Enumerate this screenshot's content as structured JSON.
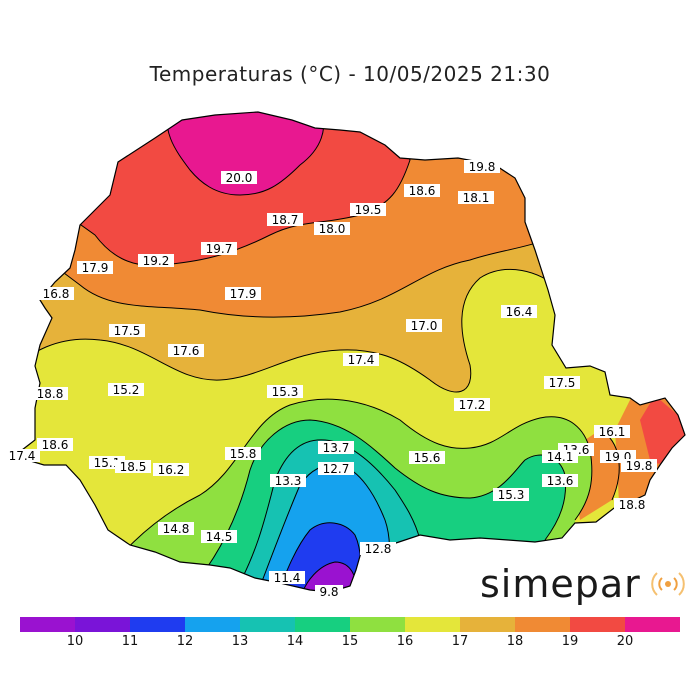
{
  "title": "Temperaturas (°C) - 10/05/2025 21:30",
  "brand": {
    "name": "simepar",
    "icon": "signal-waves-icon",
    "color": "#f0a040"
  },
  "colorbar": {
    "ticks": [
      "10",
      "11",
      "12",
      "13",
      "14",
      "15",
      "16",
      "17",
      "18",
      "19",
      "20"
    ],
    "colors": [
      "#9a12d0",
      "#7a14d8",
      "#1f3cf0",
      "#15a2ee",
      "#16c2b2",
      "#17cf80",
      "#8fe040",
      "#e4e63a",
      "#e6b23a",
      "#f08a34",
      "#f24a42",
      "#e81890"
    ]
  },
  "labels": [
    {
      "id": "v1",
      "text": "20.0"
    },
    {
      "id": "v2",
      "text": "19.8"
    },
    {
      "id": "v3",
      "text": "18.6"
    },
    {
      "id": "v4",
      "text": "18.1"
    },
    {
      "id": "v5",
      "text": "19.5"
    },
    {
      "id": "v6",
      "text": "18.7"
    },
    {
      "id": "v7",
      "text": "18.0"
    },
    {
      "id": "v8",
      "text": "19.7"
    },
    {
      "id": "v9",
      "text": "19.2"
    },
    {
      "id": "v10",
      "text": "17.9"
    },
    {
      "id": "v11",
      "text": "17.9"
    },
    {
      "id": "v12",
      "text": "16.8"
    },
    {
      "id": "v13",
      "text": "17.5"
    },
    {
      "id": "v14",
      "text": "17.6"
    },
    {
      "id": "v15",
      "text": "17.0"
    },
    {
      "id": "v16",
      "text": "16.4"
    },
    {
      "id": "v17",
      "text": "17.4"
    },
    {
      "id": "v18",
      "text": "15.2"
    },
    {
      "id": "v19",
      "text": "15.3"
    },
    {
      "id": "v20",
      "text": "17.5"
    },
    {
      "id": "v21",
      "text": "17.2"
    },
    {
      "id": "v22",
      "text": "18.8"
    },
    {
      "id": "v23",
      "text": "16.1"
    },
    {
      "id": "v24",
      "text": "13.7"
    },
    {
      "id": "v25",
      "text": "13.6"
    },
    {
      "id": "v26",
      "text": "14.1"
    },
    {
      "id": "v27",
      "text": "19.0"
    },
    {
      "id": "v28",
      "text": "18.6"
    },
    {
      "id": "v29",
      "text": "15.8"
    },
    {
      "id": "v30",
      "text": "15.6"
    },
    {
      "id": "v31",
      "text": "12.7"
    },
    {
      "id": "v32",
      "text": "19.8"
    },
    {
      "id": "v33",
      "text": "17.4"
    },
    {
      "id": "v34",
      "text": "15.1"
    },
    {
      "id": "v35",
      "text": "18.5"
    },
    {
      "id": "v36",
      "text": "16.2"
    },
    {
      "id": "v37",
      "text": "13.3"
    },
    {
      "id": "v38",
      "text": "13.6"
    },
    {
      "id": "v39",
      "text": "15.3"
    },
    {
      "id": "v40",
      "text": "18.8"
    },
    {
      "id": "v41",
      "text": "14.8"
    },
    {
      "id": "v42",
      "text": "14.5"
    },
    {
      "id": "v43",
      "text": "12.8"
    },
    {
      "id": "v44",
      "text": "11.4"
    },
    {
      "id": "v45",
      "text": "9.8"
    }
  ]
}
